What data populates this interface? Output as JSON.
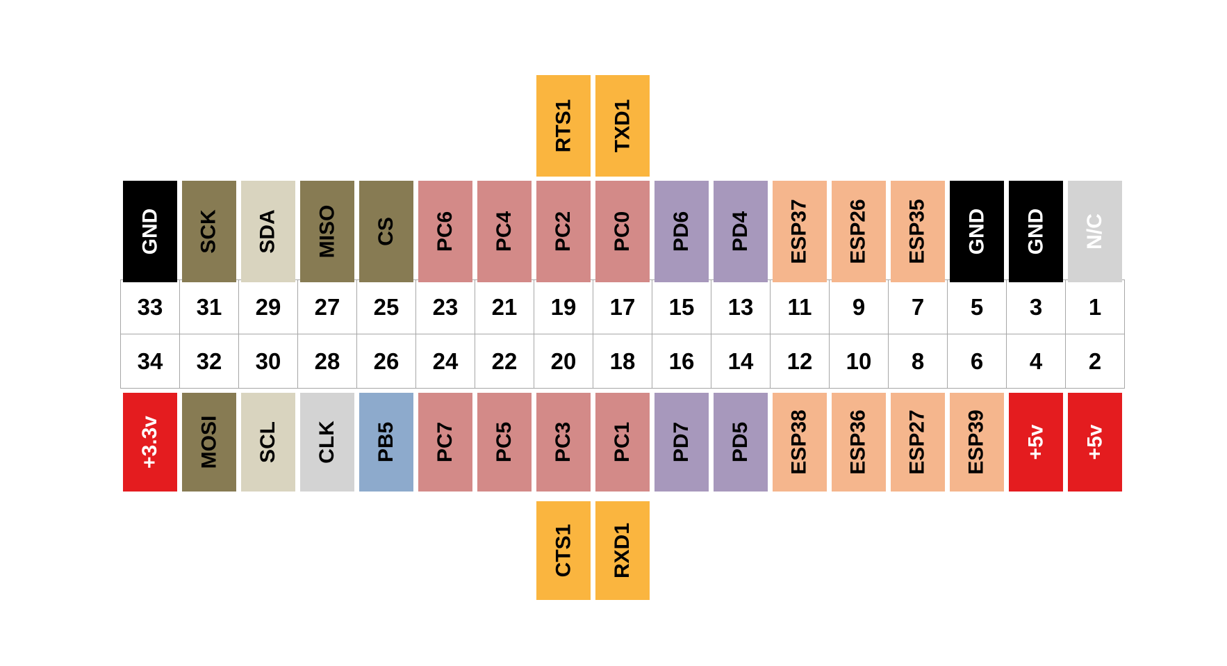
{
  "colors": {
    "gnd": "#000000",
    "spi": "#877B53",
    "i2c": "#D9D4BF",
    "power": "#E41C1F",
    "nc": "#D3D3D3",
    "pb": "#8DAACC",
    "pc": "#D38A88",
    "pd": "#A798BC",
    "esp": "#F5B68D",
    "uart": "#FAB53F"
  },
  "top_labels": [
    {
      "label": "GND",
      "color": "gnd",
      "text": "#fff"
    },
    {
      "label": "SCK",
      "color": "spi",
      "text": "#000"
    },
    {
      "label": "SDA",
      "color": "i2c",
      "text": "#000"
    },
    {
      "label": "MISO",
      "color": "spi",
      "text": "#000"
    },
    {
      "label": "CS",
      "color": "spi",
      "text": "#000"
    },
    {
      "label": "PC6",
      "color": "pc",
      "text": "#000"
    },
    {
      "label": "PC4",
      "color": "pc",
      "text": "#000"
    },
    {
      "label": "PC2",
      "color": "pc",
      "text": "#000"
    },
    {
      "label": "PC0",
      "color": "pc",
      "text": "#000"
    },
    {
      "label": "PD6",
      "color": "pd",
      "text": "#000"
    },
    {
      "label": "PD4",
      "color": "pd",
      "text": "#000"
    },
    {
      "label": "ESP37",
      "color": "esp",
      "text": "#000"
    },
    {
      "label": "ESP26",
      "color": "esp",
      "text": "#000"
    },
    {
      "label": "ESP35",
      "color": "esp",
      "text": "#000"
    },
    {
      "label": "GND",
      "color": "gnd",
      "text": "#fff"
    },
    {
      "label": "GND",
      "color": "gnd",
      "text": "#fff"
    },
    {
      "label": "N/C",
      "color": "nc",
      "text": "#fff"
    }
  ],
  "bottom_labels": [
    {
      "label": "+3.3v",
      "color": "power",
      "text": "#fff"
    },
    {
      "label": "MOSI",
      "color": "spi",
      "text": "#000"
    },
    {
      "label": "SCL",
      "color": "i2c",
      "text": "#000"
    },
    {
      "label": "CLK",
      "color": "nc",
      "text": "#000"
    },
    {
      "label": "PB5",
      "color": "pb",
      "text": "#000"
    },
    {
      "label": "PC7",
      "color": "pc",
      "text": "#000"
    },
    {
      "label": "PC5",
      "color": "pc",
      "text": "#000"
    },
    {
      "label": "PC3",
      "color": "pc",
      "text": "#000"
    },
    {
      "label": "PC1",
      "color": "pc",
      "text": "#000"
    },
    {
      "label": "PD7",
      "color": "pd",
      "text": "#000"
    },
    {
      "label": "PD5",
      "color": "pd",
      "text": "#000"
    },
    {
      "label": "ESP38",
      "color": "esp",
      "text": "#000"
    },
    {
      "label": "ESP36",
      "color": "esp",
      "text": "#000"
    },
    {
      "label": "ESP27",
      "color": "esp",
      "text": "#000"
    },
    {
      "label": "ESP39",
      "color": "esp",
      "text": "#000"
    },
    {
      "label": "+5v",
      "color": "power",
      "text": "#fff"
    },
    {
      "label": "+5v",
      "color": "power",
      "text": "#fff"
    }
  ],
  "top_extra": [
    {
      "label": "RTS1",
      "column": 7
    },
    {
      "label": "TXD1",
      "column": 8
    }
  ],
  "bottom_extra": [
    {
      "label": "CTS1",
      "column": 7
    },
    {
      "label": "RXD1",
      "column": 8
    }
  ],
  "odd_pins": [
    "33",
    "31",
    "29",
    "27",
    "25",
    "23",
    "21",
    "19",
    "17",
    "15",
    "13",
    "11",
    "9",
    "7",
    "5",
    "3",
    "1"
  ],
  "even_pins": [
    "34",
    "32",
    "30",
    "28",
    "26",
    "24",
    "22",
    "20",
    "18",
    "16",
    "14",
    "12",
    "10",
    "8",
    "6",
    "4",
    "2"
  ]
}
